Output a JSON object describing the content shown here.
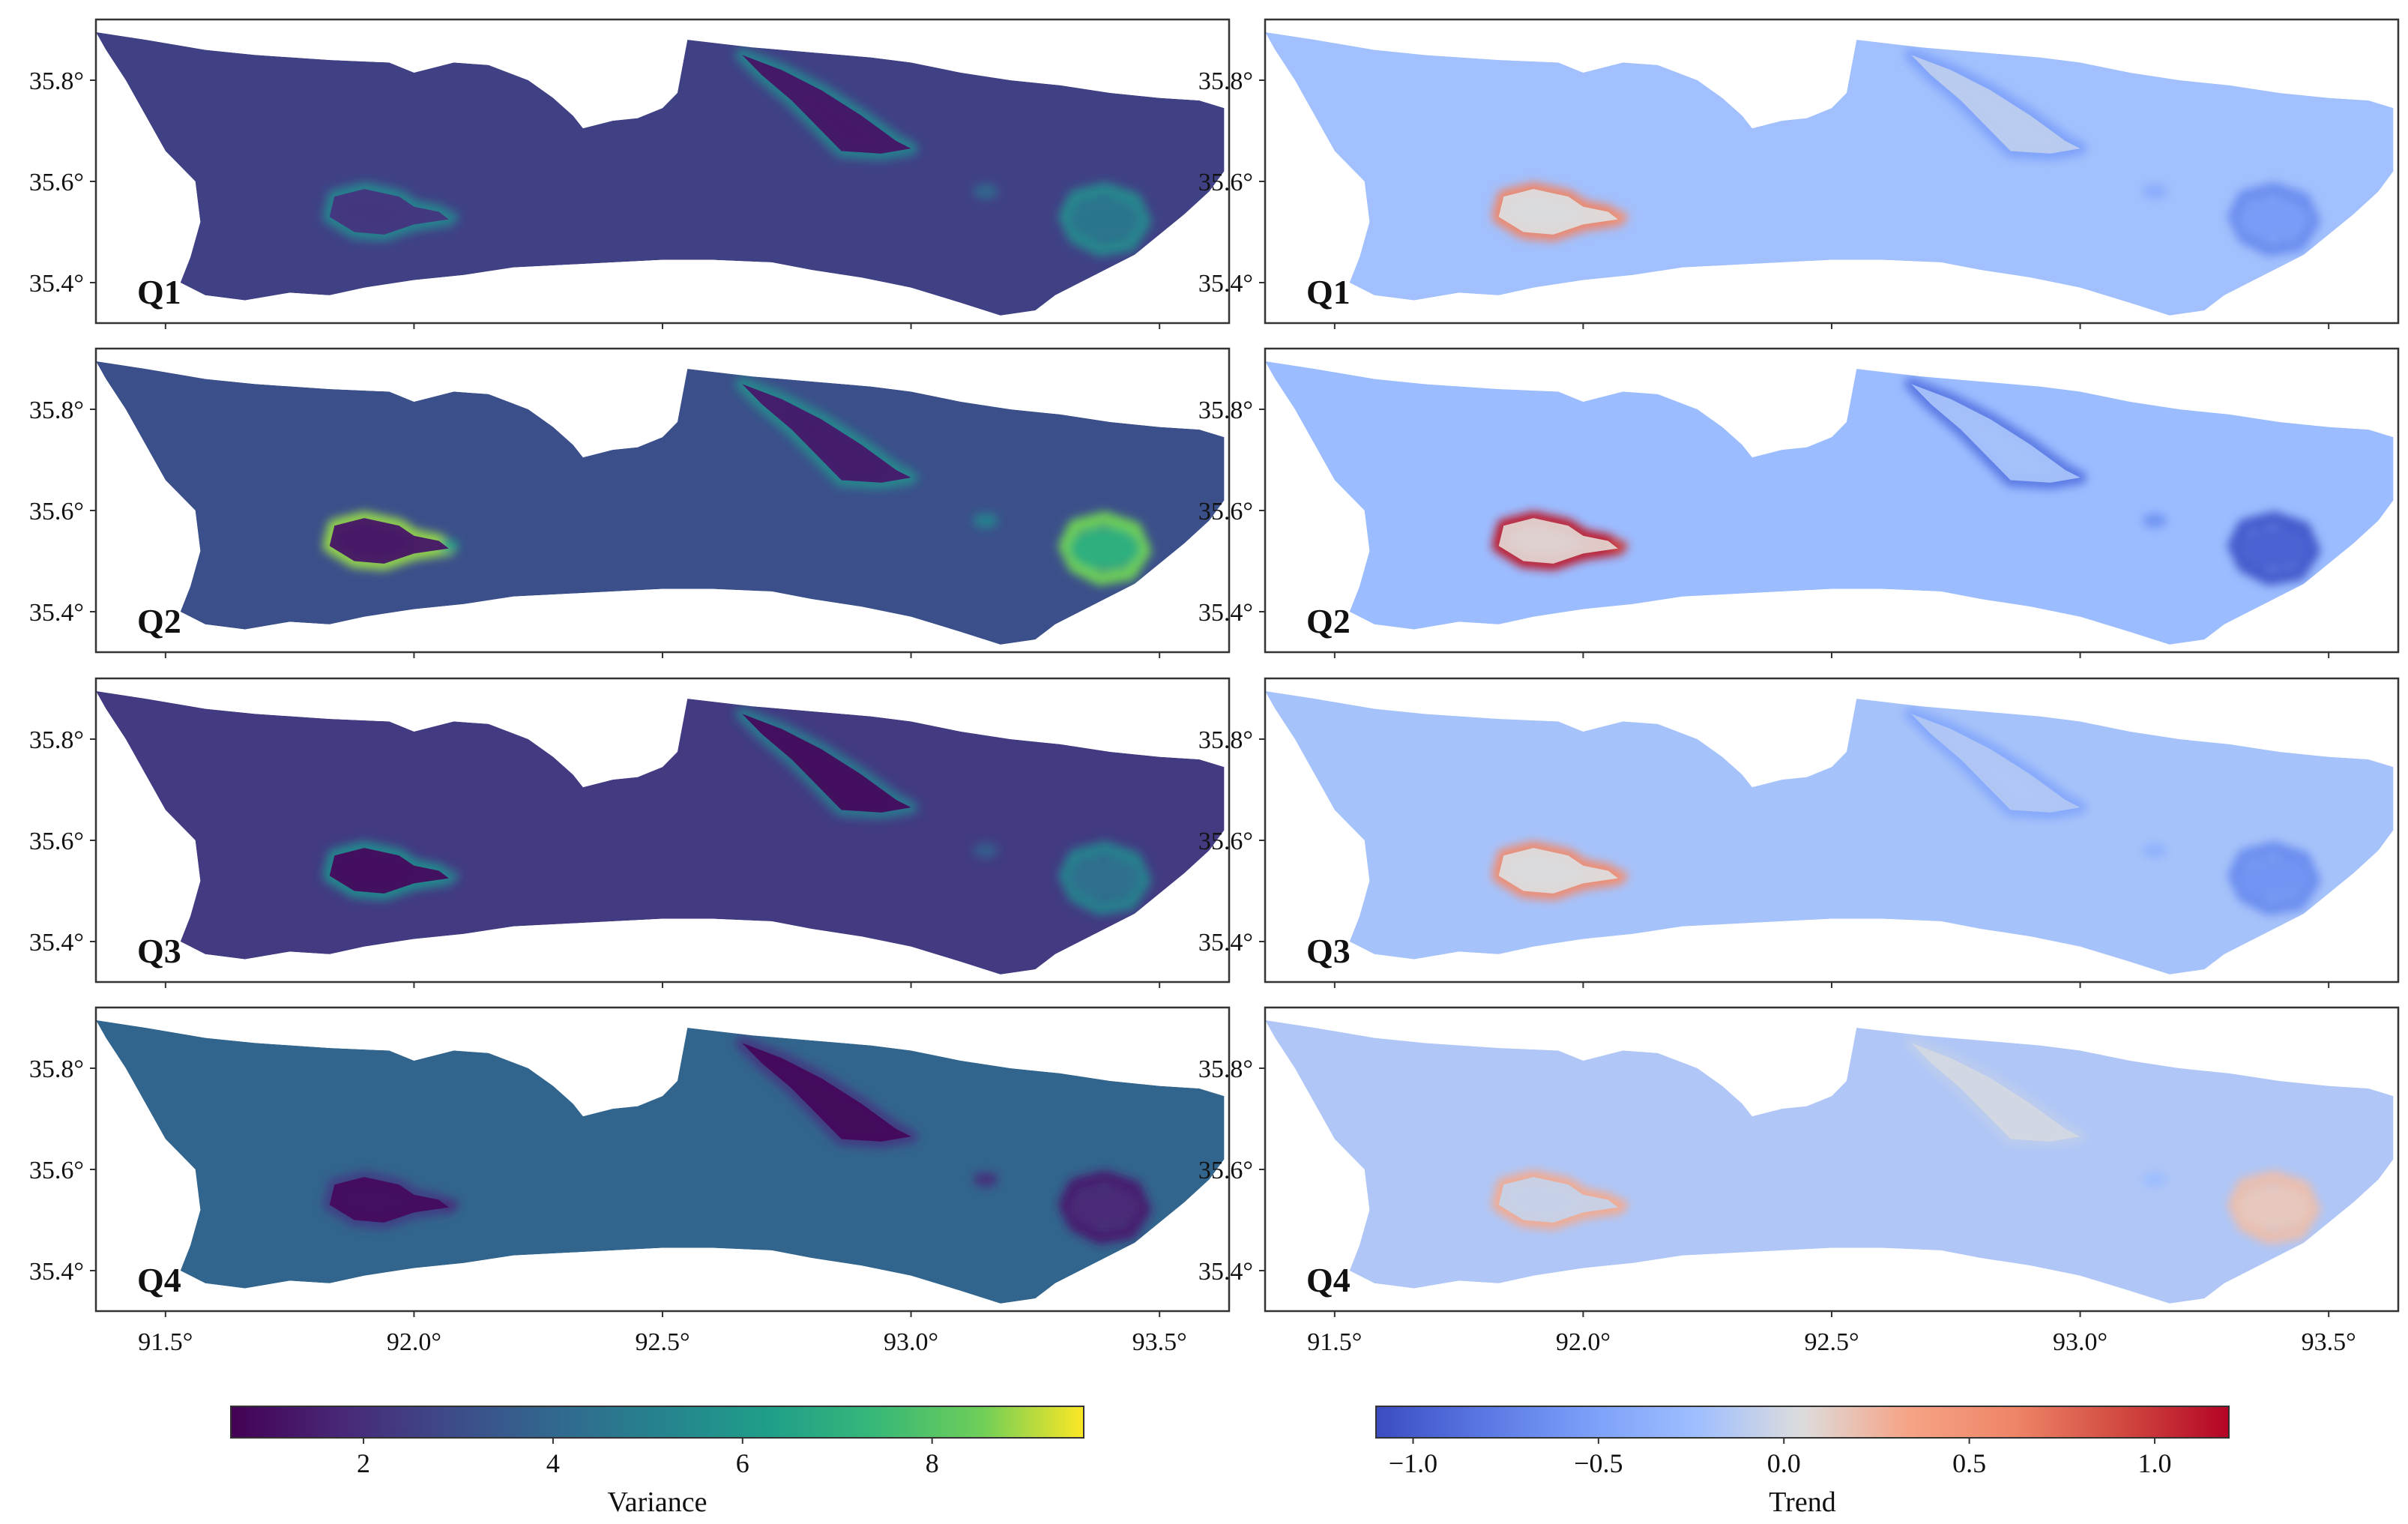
{
  "figure": {
    "panel_labels": [
      "Q1",
      "Q2",
      "Q3",
      "Q4"
    ],
    "region_outline": [
      [
        91.36,
        35.895
      ],
      [
        91.46,
        35.88
      ],
      [
        91.58,
        35.86
      ],
      [
        91.68,
        35.85
      ],
      [
        91.83,
        35.84
      ],
      [
        91.95,
        35.835
      ],
      [
        92.0,
        35.815
      ],
      [
        92.08,
        35.835
      ],
      [
        92.15,
        35.83
      ],
      [
        92.23,
        35.8
      ],
      [
        92.28,
        35.765
      ],
      [
        92.32,
        35.73
      ],
      [
        92.34,
        35.705
      ],
      [
        92.4,
        35.72
      ],
      [
        92.45,
        35.725
      ],
      [
        92.5,
        35.745
      ],
      [
        92.53,
        35.775
      ],
      [
        92.55,
        35.88
      ],
      [
        92.68,
        35.865
      ],
      [
        92.8,
        35.855
      ],
      [
        92.92,
        35.845
      ],
      [
        93.0,
        35.835
      ],
      [
        93.1,
        35.815
      ],
      [
        93.2,
        35.8
      ],
      [
        93.3,
        35.79
      ],
      [
        93.4,
        35.775
      ],
      [
        93.5,
        35.765
      ],
      [
        93.58,
        35.76
      ],
      [
        93.63,
        35.745
      ],
      [
        93.63,
        35.62
      ],
      [
        93.6,
        35.58
      ],
      [
        93.55,
        35.535
      ],
      [
        93.5,
        35.495
      ],
      [
        93.45,
        35.455
      ],
      [
        93.38,
        35.42
      ],
      [
        93.33,
        35.395
      ],
      [
        93.29,
        35.375
      ],
      [
        93.25,
        35.345
      ],
      [
        93.18,
        35.335
      ],
      [
        93.1,
        35.36
      ],
      [
        93.0,
        35.39
      ],
      [
        92.9,
        35.41
      ],
      [
        92.8,
        35.425
      ],
      [
        92.72,
        35.44
      ],
      [
        92.6,
        35.445
      ],
      [
        92.5,
        35.445
      ],
      [
        92.4,
        35.44
      ],
      [
        92.3,
        35.435
      ],
      [
        92.2,
        35.43
      ],
      [
        92.1,
        35.415
      ],
      [
        92.0,
        35.405
      ],
      [
        91.9,
        35.39
      ],
      [
        91.83,
        35.375
      ],
      [
        91.75,
        35.38
      ],
      [
        91.66,
        35.365
      ],
      [
        91.58,
        35.375
      ],
      [
        91.53,
        35.4
      ],
      [
        91.55,
        35.45
      ],
      [
        91.57,
        35.52
      ],
      [
        91.56,
        35.6
      ],
      [
        91.5,
        35.66
      ],
      [
        91.46,
        35.73
      ],
      [
        91.42,
        35.8
      ],
      [
        91.38,
        35.86
      ]
    ],
    "lakes": [
      {
        "name": "northern-lake",
        "polygon": [
          [
            92.66,
            35.85
          ],
          [
            92.74,
            35.82
          ],
          [
            92.82,
            35.78
          ],
          [
            92.9,
            35.73
          ],
          [
            92.97,
            35.68
          ],
          [
            93.0,
            35.665
          ],
          [
            92.94,
            35.655
          ],
          [
            92.86,
            35.66
          ],
          [
            92.82,
            35.7
          ],
          [
            92.76,
            35.76
          ],
          [
            92.7,
            35.81
          ]
        ]
      },
      {
        "name": "western-lake",
        "polygon": [
          [
            91.84,
            35.57
          ],
          [
            91.9,
            35.585
          ],
          [
            91.97,
            35.57
          ],
          [
            92.0,
            35.55
          ],
          [
            92.05,
            35.54
          ],
          [
            92.07,
            35.525
          ],
          [
            92.0,
            35.515
          ],
          [
            91.94,
            35.495
          ],
          [
            91.88,
            35.5
          ],
          [
            91.83,
            35.53
          ]
        ]
      },
      {
        "name": "eastern-ring",
        "polygon": [
          [
            93.33,
            35.57
          ],
          [
            93.39,
            35.585
          ],
          [
            93.45,
            35.565
          ],
          [
            93.47,
            35.52
          ],
          [
            93.44,
            35.475
          ],
          [
            93.38,
            35.465
          ],
          [
            93.33,
            35.49
          ],
          [
            93.31,
            35.53
          ]
        ]
      }
    ],
    "features": [
      {
        "id": "lake-n",
        "lon": 92.85,
        "lat": 35.74,
        "r": 0.06
      },
      {
        "id": "lake-w",
        "lon": 91.93,
        "lat": 35.545,
        "r": 0.055
      },
      {
        "id": "tail-w",
        "lon": 92.07,
        "lat": 35.53,
        "r": 0.02
      },
      {
        "id": "ring-e",
        "lon": 93.39,
        "lat": 35.525,
        "r": 0.07
      },
      {
        "id": "spots-mid",
        "lon": 93.15,
        "lat": 35.58,
        "r": 0.025
      }
    ],
    "quarters": [
      {
        "label": "Q1",
        "background_variance": 2.6,
        "background_trend": -0.22,
        "variance_features": {
          "lake-n": 1.2,
          "lake-w": 2.2,
          "tail-w": 5.0,
          "ring-e": 4.5,
          "spots-mid": 4.0
        },
        "variance_edges": {
          "lake-n": 5.0,
          "lake-w": 5.2,
          "ring-e": 5.3
        },
        "trend_features": {
          "lake-n": -0.1,
          "lake-w": 0.05,
          "tail-w": 0.5,
          "ring-e": -0.55,
          "spots-mid": -0.4
        },
        "trend_edges": {
          "lake-n": -0.5,
          "lake-w": 0.6,
          "ring-e": -0.65
        }
      },
      {
        "label": "Q2",
        "background_variance": 3.1,
        "background_trend": -0.26,
        "variance_features": {
          "lake-n": 1.3,
          "lake-w": 1.2,
          "tail-w": 6.5,
          "ring-e": 7.0,
          "spots-mid": 5.0
        },
        "variance_edges": {
          "lake-n": 5.3,
          "lake-w": 8.8,
          "ring-e": 8.5
        },
        "trend_features": {
          "lake-n": -0.2,
          "lake-w": 0.1,
          "tail-w": 0.95,
          "ring-e": -0.95,
          "spots-mid": -0.6
        },
        "trend_edges": {
          "lake-n": -0.8,
          "lake-w": 1.1,
          "ring-e": -1.0
        }
      },
      {
        "label": "Q3",
        "background_variance": 2.4,
        "background_trend": -0.2,
        "variance_features": {
          "lake-n": 0.9,
          "lake-w": 0.9,
          "tail-w": 4.8,
          "ring-e": 4.3,
          "spots-mid": 3.6
        },
        "variance_edges": {
          "lake-n": 4.6,
          "lake-w": 5.4,
          "ring-e": 5.0
        },
        "trend_features": {
          "lake-n": -0.15,
          "lake-w": 0.05,
          "tail-w": 0.5,
          "ring-e": -0.6,
          "spots-mid": -0.35
        },
        "trend_edges": {
          "lake-n": -0.45,
          "lake-w": 0.55,
          "ring-e": -0.65
        }
      },
      {
        "label": "Q4",
        "background_variance": 3.9,
        "background_trend": -0.16,
        "variance_features": {
          "lake-n": 0.8,
          "lake-w": 0.9,
          "tail-w": 2.0,
          "ring-e": 1.8,
          "spots-mid": 2.1
        },
        "variance_edges": {
          "lake-n": 2.4,
          "lake-w": 2.6,
          "ring-e": 1.5
        },
        "trend_features": {
          "lake-n": 0.0,
          "lake-w": -0.05,
          "tail-w": 0.3,
          "ring-e": 0.15,
          "spots-mid": -0.25
        },
        "trend_edges": {
          "lake-n": -0.1,
          "lake-w": 0.3,
          "ring-e": 0.2
        }
      }
    ]
  },
  "chart_data": [
    {
      "type": "heatmap",
      "title": "",
      "quantity": "Variance",
      "panels": [
        "Q1",
        "Q2",
        "Q3",
        "Q4"
      ],
      "xlim": [
        91.36,
        93.64
      ],
      "ylim": [
        35.32,
        35.92
      ],
      "x_ticks": [
        91.5,
        92.0,
        92.5,
        93.0,
        93.5
      ],
      "x_tick_labels": [
        "91.5°",
        "92.0°",
        "92.5°",
        "93.0°",
        "93.5°"
      ],
      "y_ticks": [
        35.4,
        35.6,
        35.8
      ],
      "y_tick_labels": [
        "35.4°",
        "35.6°",
        "35.8°"
      ],
      "colormap": "viridis",
      "color_range": [
        0.6,
        9.6
      ],
      "colorbar_ticks": [
        2,
        4,
        6,
        8
      ],
      "colorbar_tick_labels": [
        "2",
        "4",
        "6",
        "8"
      ],
      "colorbar_label": "Variance"
    },
    {
      "type": "heatmap",
      "title": "",
      "quantity": "Trend",
      "panels": [
        "Q1",
        "Q2",
        "Q3",
        "Q4"
      ],
      "xlim": [
        91.36,
        93.64
      ],
      "ylim": [
        35.32,
        35.92
      ],
      "x_ticks": [
        91.5,
        92.0,
        92.5,
        93.0,
        93.5
      ],
      "x_tick_labels": [
        "91.5°",
        "92.0°",
        "92.5°",
        "93.0°",
        "93.5°"
      ],
      "y_ticks": [
        35.4,
        35.6,
        35.8
      ],
      "y_tick_labels": [
        "35.4°",
        "35.6°",
        "35.8°"
      ],
      "colormap": "coolwarm",
      "color_range": [
        -1.1,
        1.2
      ],
      "colorbar_ticks": [
        -1.0,
        -0.5,
        0.0,
        0.5,
        1.0
      ],
      "colorbar_tick_labels": [
        "−1.0",
        "−0.5",
        "0.0",
        "0.5",
        "1.0"
      ],
      "colorbar_label": "Trend"
    }
  ]
}
